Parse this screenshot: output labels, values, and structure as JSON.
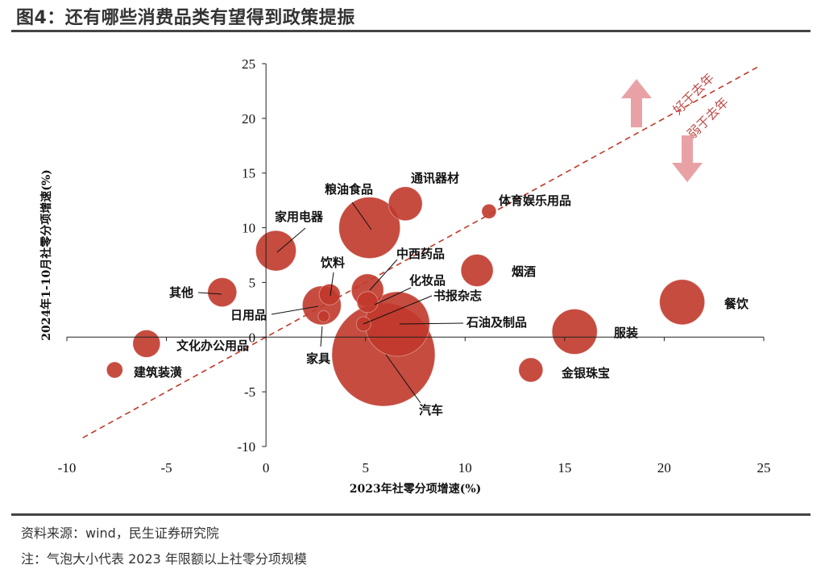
{
  "header": {
    "title": "图4：还有哪些消费品类有望得到政策提振"
  },
  "footer": {
    "source": "资料来源：wind，民生证券研究院",
    "note": "注：气泡大小代表 2023 年限额以上社零分项规模"
  },
  "chart_data": {
    "type": "scatter",
    "subtype": "bubble",
    "xlabel": "2023年社零分项增速(%)",
    "ylabel": "2024年1-10月社零分项增速(%)",
    "xlim": [
      -10,
      25
    ],
    "ylim": [
      -10,
      25
    ],
    "xticks": [
      -10,
      -5,
      0,
      5,
      10,
      15,
      20,
      25
    ],
    "yticks": [
      -10,
      -5,
      0,
      5,
      10,
      15,
      20,
      25
    ],
    "grid": false,
    "legend": "none",
    "bubble_color": "#c0392b",
    "reference_line": {
      "style": "dashed",
      "color": "#c0392b",
      "equation": "y = x"
    },
    "annotations": {
      "above": "好于去年",
      "below": "弱于去年"
    },
    "points": [
      {
        "name": "餐饮",
        "x": 20.9,
        "y": 3.2,
        "size": 28
      },
      {
        "name": "服装",
        "x": 15.5,
        "y": 0.5,
        "size": 28
      },
      {
        "name": "金银珠宝",
        "x": 13.3,
        "y": -3.0,
        "size": 15
      },
      {
        "name": "烟酒",
        "x": 10.6,
        "y": 6.1,
        "size": 20
      },
      {
        "name": "体育娱乐用品",
        "x": 11.2,
        "y": 11.5,
        "size": 9
      },
      {
        "name": "通讯器材",
        "x": 7.0,
        "y": 12.2,
        "size": 21
      },
      {
        "name": "粮油食品",
        "x": 5.2,
        "y": 10.0,
        "size": 38
      },
      {
        "name": "中西药品",
        "x": 5.1,
        "y": 4.3,
        "size": 20
      },
      {
        "name": "化妆品",
        "x": 5.1,
        "y": 3.2,
        "size": 13
      },
      {
        "name": "书报杂志",
        "x": 4.9,
        "y": 1.2,
        "size": 9
      },
      {
        "name": "石油及制品",
        "x": 6.6,
        "y": 1.2,
        "size": 40
      },
      {
        "name": "汽车",
        "x": 5.9,
        "y": -1.6,
        "size": 64
      },
      {
        "name": "家用电器",
        "x": 0.5,
        "y": 7.9,
        "size": 25
      },
      {
        "name": "饮料",
        "x": 3.2,
        "y": 3.9,
        "size": 13
      },
      {
        "name": "日用品",
        "x": 2.8,
        "y": 2.9,
        "size": 24
      },
      {
        "name": "家具",
        "x": 2.9,
        "y": 1.9,
        "size": 7
      },
      {
        "name": "其他",
        "x": -2.2,
        "y": 4.1,
        "size": 18
      },
      {
        "name": "文化办公用品",
        "x": -6.0,
        "y": -0.6,
        "size": 17
      },
      {
        "name": "建筑装潢",
        "x": -7.6,
        "y": -3.0,
        "size": 10
      }
    ]
  }
}
